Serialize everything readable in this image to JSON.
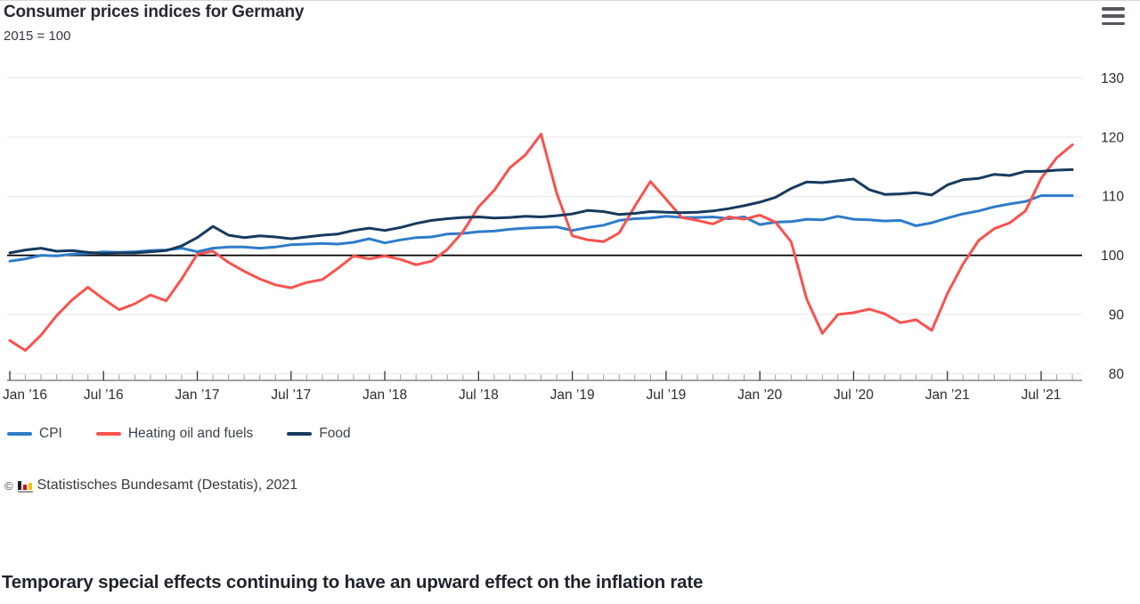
{
  "header": {
    "title": "Consumer prices indices for Germany",
    "subtitle": "2015 = 100"
  },
  "menu": {
    "icon": "hamburger-icon",
    "label": "chart context menu"
  },
  "chart_data": {
    "type": "line",
    "title": "Consumer prices indices for Germany",
    "subtitle": "2015 = 100",
    "x_unit": "month",
    "x_start": "2016-01",
    "x_end": "2021-09",
    "x_tick_labels": [
      "Jan ’16",
      "Jul ’16",
      "Jan ’17",
      "Jul ’17",
      "Jan ’18",
      "Jul ’18",
      "Jan ’19",
      "Jul ’19",
      "Jan ’20",
      "Jul ’20",
      "Jan ’21",
      "Jul ’21"
    ],
    "y_ticks": [
      80,
      90,
      100,
      110,
      120,
      130
    ],
    "ylim": [
      79,
      134
    ],
    "baseline": 100,
    "grid": true,
    "legend_position": "bottom-left",
    "series": [
      {
        "name": "CPI",
        "color": "#2e7cc9",
        "values": [
          99.0,
          99.4,
          100.0,
          99.9,
          100.2,
          100.3,
          100.6,
          100.5,
          100.6,
          100.8,
          100.9,
          101.2,
          100.6,
          101.2,
          101.4,
          101.4,
          101.2,
          101.4,
          101.8,
          101.9,
          102.0,
          101.9,
          102.2,
          102.8,
          102.1,
          102.6,
          103.0,
          103.1,
          103.6,
          103.7,
          104.0,
          104.1,
          104.4,
          104.6,
          104.7,
          104.8,
          104.2,
          104.7,
          105.1,
          105.9,
          106.2,
          106.3,
          106.6,
          106.4,
          106.4,
          106.5,
          106.2,
          106.5,
          105.2,
          105.6,
          105.7,
          106.1,
          106.0,
          106.6,
          106.1,
          106.0,
          105.8,
          105.9,
          105.0,
          105.5,
          106.3,
          107.0,
          107.5,
          108.2,
          108.7,
          109.1,
          110.1,
          110.1,
          110.1
        ]
      },
      {
        "name": "Heating oil and fuels",
        "color": "#f9524e",
        "values": [
          85.6,
          83.9,
          86.5,
          89.8,
          92.5,
          94.6,
          92.6,
          90.8,
          91.8,
          93.3,
          92.3,
          96.0,
          100.2,
          100.7,
          98.8,
          97.3,
          96.0,
          95.0,
          94.5,
          95.4,
          95.9,
          97.8,
          99.9,
          99.4,
          99.9,
          99.3,
          98.4,
          99.0,
          101.0,
          104.0,
          108.2,
          111.0,
          114.8,
          117.0,
          120.5,
          110.5,
          103.3,
          102.6,
          102.3,
          103.8,
          108.3,
          112.5,
          109.5,
          106.4,
          105.9,
          105.3,
          106.5,
          106.1,
          106.8,
          105.6,
          102.3,
          92.6,
          86.8,
          90.0,
          90.3,
          90.9,
          90.1,
          88.6,
          89.1,
          87.3,
          93.5,
          98.5,
          102.5,
          104.5,
          105.5,
          107.5,
          113.0,
          116.5,
          118.7
        ]
      },
      {
        "name": "Food",
        "color": "#173a5e",
        "values": [
          100.4,
          100.9,
          101.2,
          100.7,
          100.8,
          100.5,
          100.3,
          100.4,
          100.4,
          100.6,
          100.8,
          101.6,
          103.0,
          104.9,
          103.4,
          103.0,
          103.3,
          103.1,
          102.8,
          103.1,
          103.4,
          103.6,
          104.2,
          104.6,
          104.2,
          104.7,
          105.4,
          105.9,
          106.2,
          106.4,
          106.5,
          106.3,
          106.4,
          106.6,
          106.5,
          106.7,
          107.0,
          107.6,
          107.4,
          106.9,
          107.1,
          107.4,
          107.3,
          107.2,
          107.3,
          107.5,
          107.9,
          108.4,
          109.0,
          109.8,
          111.3,
          112.4,
          112.3,
          112.6,
          112.9,
          111.1,
          110.3,
          110.4,
          110.6,
          110.2,
          111.9,
          112.8,
          113.0,
          113.7,
          113.5,
          114.2,
          114.2,
          114.4,
          114.5
        ]
      }
    ]
  },
  "credit": {
    "copyright": "©",
    "logo": "destatis-bars-icon",
    "text": "Statistisches Bundesamt (Destatis), 2021"
  },
  "headline": {
    "text": "Temporary special effects continuing to have an upward effect on the inflation rate"
  },
  "colors": {
    "grid": "#e6e6e6",
    "baseline": "#000000",
    "axis": "#444444",
    "tick_major": "#333333",
    "tick_minor": "#999999",
    "axis_label": "#2d2d2d"
  }
}
